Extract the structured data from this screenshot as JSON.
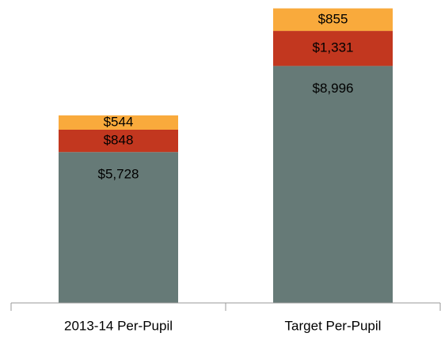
{
  "chart_data": {
    "type": "stacked_bar",
    "categories": [
      "2013-14 Per-Pupil",
      "Target Per-Pupil"
    ],
    "series": [
      {
        "color": "#667a77",
        "values": [
          5728,
          8996
        ],
        "value_labels": [
          "$5,728",
          "$8,996"
        ]
      },
      {
        "color": "#c2371f",
        "values": [
          848,
          1331
        ],
        "value_labels": [
          "$848",
          "$1,331"
        ]
      },
      {
        "color": "#f9aa3c",
        "values": [
          544,
          855
        ],
        "value_labels": [
          "$544",
          "$855"
        ]
      }
    ],
    "ylim": [
      0,
      11500
    ]
  }
}
